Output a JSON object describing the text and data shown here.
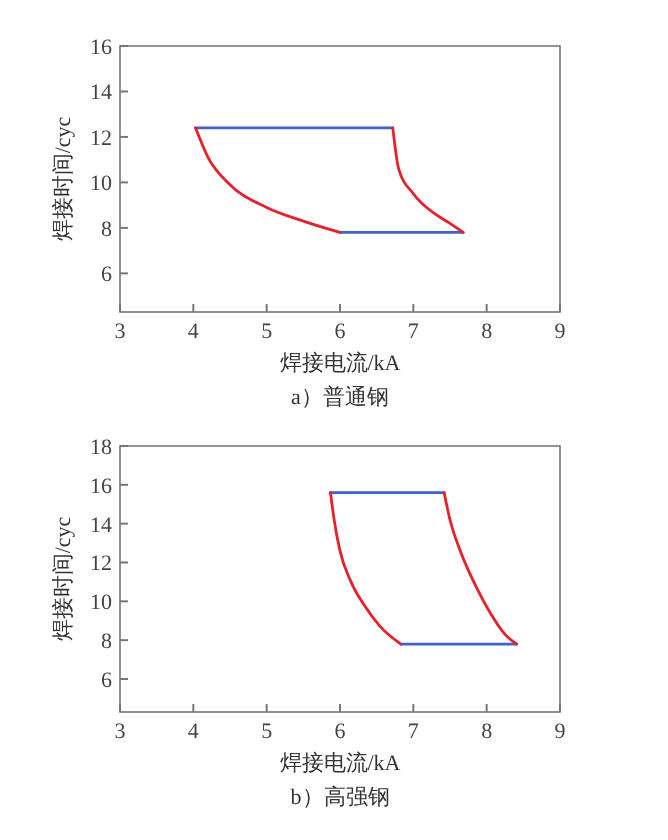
{
  "chart_data": [
    {
      "type": "line",
      "title": "a）普通钢",
      "xlabel": "焊接电流/kA",
      "ylabel": "焊接时间/cyc",
      "xlim": [
        3,
        9
      ],
      "ylim": [
        4.3,
        16
      ],
      "xticks": [
        3,
        4,
        5,
        6,
        7,
        8,
        9
      ],
      "yticks": [
        6,
        8,
        10,
        12,
        14,
        16
      ],
      "grid": false,
      "marker": "none",
      "line_style": "solid",
      "series": [
        {
          "color": "#4060d0",
          "x": [
            4.03,
            6.72
          ],
          "values": [
            12.4,
            12.4
          ]
        },
        {
          "color": "#4060d0",
          "x": [
            6.0,
            7.68
          ],
          "values": [
            7.8,
            7.8
          ]
        },
        {
          "color": "#e8202a",
          "x": [
            4.03,
            4.2,
            4.5,
            5.0,
            5.5,
            6.0
          ],
          "values": [
            12.4,
            11.1,
            9.9,
            8.9,
            8.3,
            7.8
          ]
        },
        {
          "color": "#e8202a",
          "x": [
            6.72,
            6.8,
            7.0,
            7.3,
            7.5,
            7.68
          ],
          "values": [
            12.4,
            10.6,
            9.5,
            8.6,
            8.2,
            7.8
          ]
        }
      ]
    },
    {
      "type": "line",
      "title": "b）高强钢",
      "xlabel": "焊接电流/kA",
      "ylabel": "焊接时间/cyc",
      "xlim": [
        3,
        9
      ],
      "ylim": [
        4.3,
        18
      ],
      "xticks": [
        3,
        4,
        5,
        6,
        7,
        8,
        9
      ],
      "yticks": [
        6,
        8,
        10,
        12,
        14,
        16,
        18
      ],
      "grid": false,
      "marker": "none",
      "line_style": "solid",
      "series": [
        {
          "color": "#4060d0",
          "x": [
            5.87,
            7.42
          ],
          "values": [
            15.6,
            15.6
          ]
        },
        {
          "color": "#4060d0",
          "x": [
            6.83,
            8.41
          ],
          "values": [
            7.8,
            7.8
          ]
        },
        {
          "color": "#e8202a",
          "x": [
            5.87,
            5.92,
            6.0,
            6.15,
            6.35,
            6.55,
            6.83
          ],
          "values": [
            15.6,
            14.2,
            12.6,
            11.0,
            9.7,
            8.7,
            7.8
          ]
        },
        {
          "color": "#e8202a",
          "x": [
            7.42,
            7.5,
            7.65,
            7.85,
            8.05,
            8.25,
            8.41
          ],
          "values": [
            15.6,
            14.2,
            12.5,
            10.8,
            9.4,
            8.3,
            7.8
          ]
        }
      ]
    }
  ]
}
